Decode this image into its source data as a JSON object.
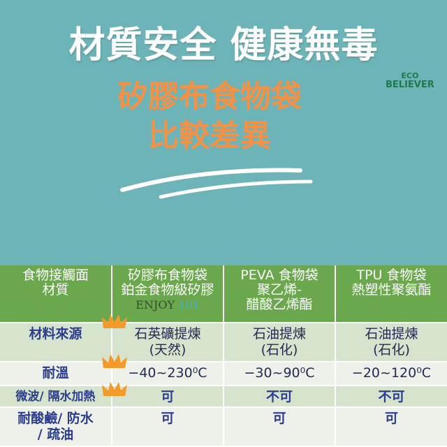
{
  "title": "材質安全 健康無毒",
  "subtitle": [
    "矽膠布食物袋",
    "比較差異"
  ],
  "logo": {
    "line1": "ECO",
    "line2": "BELIEVER"
  },
  "watermark": {
    "text1": "ENJOY",
    "text2": "101"
  },
  "colors": {
    "background": "#6cb4b8",
    "header": "#6aa74d",
    "accent": "#f39247",
    "text": "#2b3d8f"
  },
  "table": {
    "headers": [
      [
        "食物接觸面",
        "材質"
      ],
      [
        "矽膠布食物袋",
        "鉑金食物級矽膠"
      ],
      [
        "PEVA 食物袋",
        "聚乙烯-",
        "醋酸乙烯酯"
      ],
      [
        "TPU 食物袋",
        "熱塑性聚氨酯"
      ]
    ],
    "rows": [
      {
        "label": [
          "材料來源"
        ],
        "cells": [
          [
            "石英礦提煉",
            "(天然)"
          ],
          [
            "石油提煉",
            "(石化)"
          ],
          [
            "石油提煉",
            "(石化)"
          ]
        ]
      },
      {
        "label": [
          "耐溫"
        ],
        "cells": [
          [
            "−40~230⁰C"
          ],
          [
            "−30~90⁰C"
          ],
          [
            "−20~120⁰C"
          ]
        ]
      },
      {
        "label": [
          "微波/ 隔水加熱"
        ],
        "cells": [
          [
            "可"
          ],
          [
            "不可"
          ],
          [
            "不可"
          ]
        ]
      },
      {
        "label": [
          "耐酸鹼/ 防水",
          "/ 疏油"
        ],
        "cells": [
          [
            "可"
          ],
          [
            "可"
          ],
          [
            "可"
          ]
        ]
      }
    ]
  },
  "icons": [
    "crown-icon"
  ]
}
